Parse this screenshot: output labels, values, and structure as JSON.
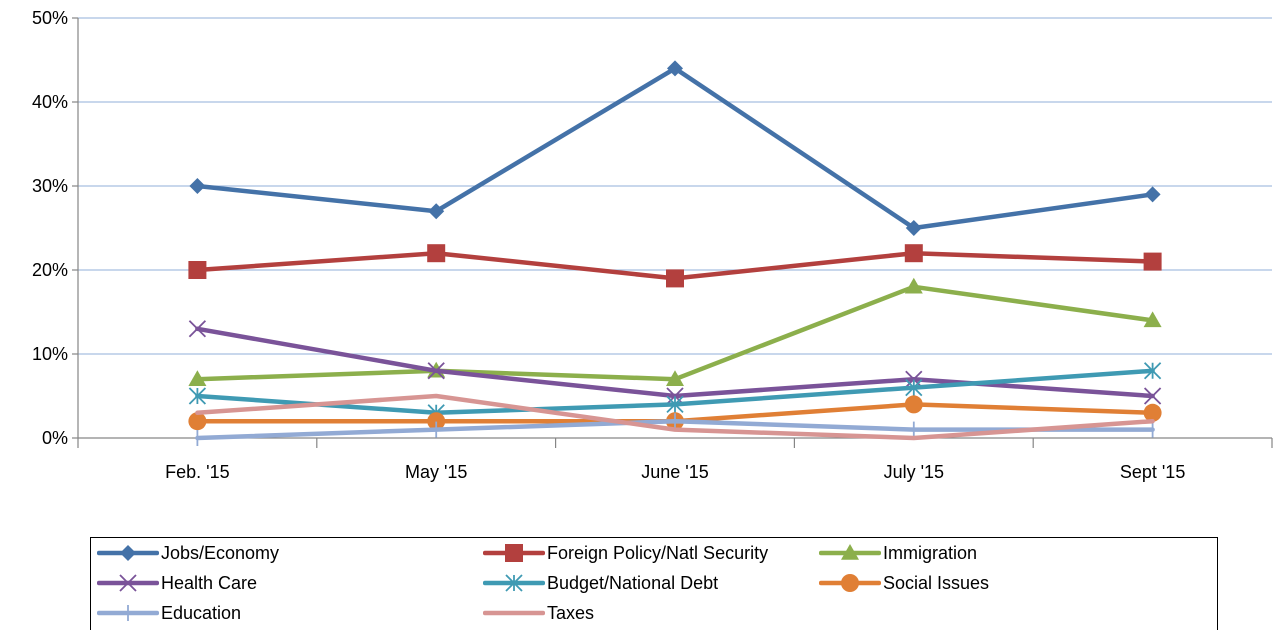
{
  "chart_data": {
    "type": "line",
    "categories": [
      "Feb. '15",
      "May '15",
      "June '15",
      "July '15",
      "Sept '15"
    ],
    "ylim": [
      0,
      50
    ],
    "yticks": [
      "0%",
      "10%",
      "20%",
      "30%",
      "40%",
      "50%"
    ],
    "grid": true,
    "legend_position": "bottom",
    "series": [
      {
        "name": "Jobs/Economy",
        "values": [
          30,
          27,
          44,
          25,
          29
        ],
        "color": "#4472a8",
        "marker": "diamond"
      },
      {
        "name": "Foreign Policy/Natl Security",
        "values": [
          20,
          22,
          19,
          22,
          21
        ],
        "color": "#b3403e",
        "marker": "square"
      },
      {
        "name": "Immigration",
        "values": [
          7,
          8,
          7,
          18,
          14
        ],
        "color": "#8caf4c",
        "marker": "triangle"
      },
      {
        "name": "Health Care",
        "values": [
          13,
          8,
          5,
          7,
          5
        ],
        "color": "#7a5399",
        "marker": "x"
      },
      {
        "name": "Budget/National Debt",
        "values": [
          5,
          3,
          4,
          6,
          8
        ],
        "color": "#3f9ab3",
        "marker": "star"
      },
      {
        "name": "Social Issues",
        "values": [
          2,
          2,
          2,
          4,
          3
        ],
        "color": "#e07f35",
        "marker": "circle"
      },
      {
        "name": "Education",
        "values": [
          0,
          1,
          2,
          1,
          1
        ],
        "color": "#92aad4",
        "marker": "plus"
      },
      {
        "name": "Taxes",
        "values": [
          3,
          5,
          1,
          0,
          2
        ],
        "color": "#d79593",
        "marker": "none"
      }
    ]
  }
}
